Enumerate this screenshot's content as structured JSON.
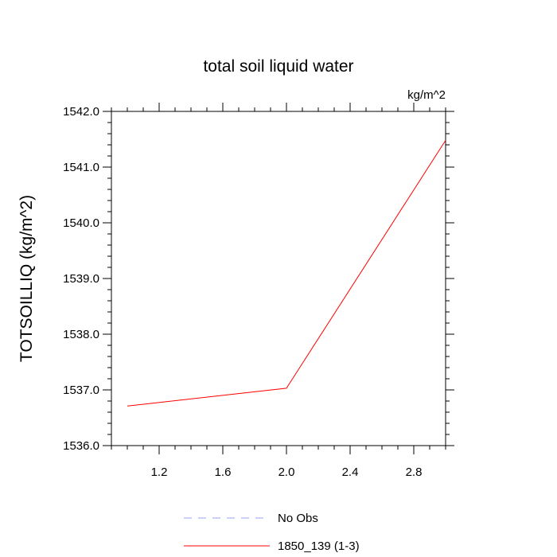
{
  "chart_data": {
    "type": "line",
    "title": "total soil liquid water",
    "units": "kg/m^2",
    "ylabel": "TOTSOILLIQ  (kg/m^2)",
    "xlabel": "",
    "xlim": [
      0.9,
      3.0
    ],
    "ylim": [
      1536.0,
      1542.0
    ],
    "xticks": [
      1.2,
      1.6,
      2.0,
      2.4,
      2.8
    ],
    "xtick_labels": [
      "1.2",
      "1.6",
      "2.0",
      "2.4",
      "2.8"
    ],
    "yticks": [
      1536.0,
      1537.0,
      1538.0,
      1539.0,
      1540.0,
      1541.0,
      1542.0
    ],
    "ytick_labels": [
      "1536.0",
      "1537.0",
      "1538.0",
      "1539.0",
      "1540.0",
      "1541.0",
      "1542.0"
    ],
    "grid": false,
    "legend_position": "bottom-center",
    "series": [
      {
        "name": "No Obs",
        "x": [],
        "y": [],
        "color": "#9aa0ff",
        "dash": "dashed"
      },
      {
        "name": "1850_139 (1-3)",
        "x": [
          1.0,
          2.0,
          3.0
        ],
        "y": [
          1536.71,
          1537.03,
          1541.48
        ],
        "color": "#ff0000",
        "dash": "solid"
      }
    ]
  }
}
